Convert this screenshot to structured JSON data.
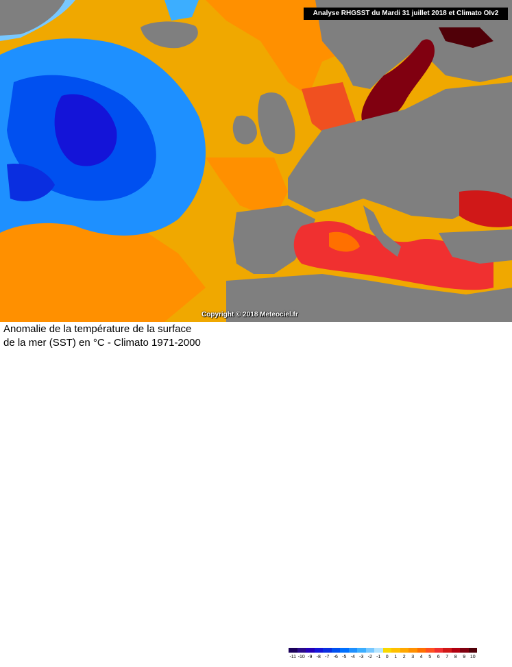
{
  "map": {
    "analysis_label": "Analyse RHGSST  du Mardi 31 juillet 2018 et Climato OIv2",
    "copyright": "Copyright © 2018 Meteociel.fr",
    "land_color": "#7f7f7f"
  },
  "footer": {
    "title_line1": "Anomalie de la température de la surface",
    "title_line2": "de la mer (SST) en °C - Climato 1971-2000"
  },
  "legend": {
    "labels": [
      "-11",
      "-10",
      "-9",
      "-8",
      "-7",
      "-6",
      "-5",
      "-4",
      "-3",
      "-2",
      "-1",
      "0",
      "1",
      "2",
      "3",
      "4",
      "5",
      "6",
      "7",
      "8",
      "9",
      "10"
    ],
    "colors": [
      "#1a005a",
      "#2a0a8a",
      "#2400b8",
      "#1414d8",
      "#0a2ee0",
      "#0050f0",
      "#0070ff",
      "#1e90ff",
      "#3caeff",
      "#78c8ff",
      "#b4e4ff",
      "#f8d800",
      "#ffc000",
      "#ffa800",
      "#ff9000",
      "#ff7000",
      "#ff5020",
      "#f03030",
      "#d01818",
      "#b00010",
      "#800010",
      "#500008"
    ]
  }
}
